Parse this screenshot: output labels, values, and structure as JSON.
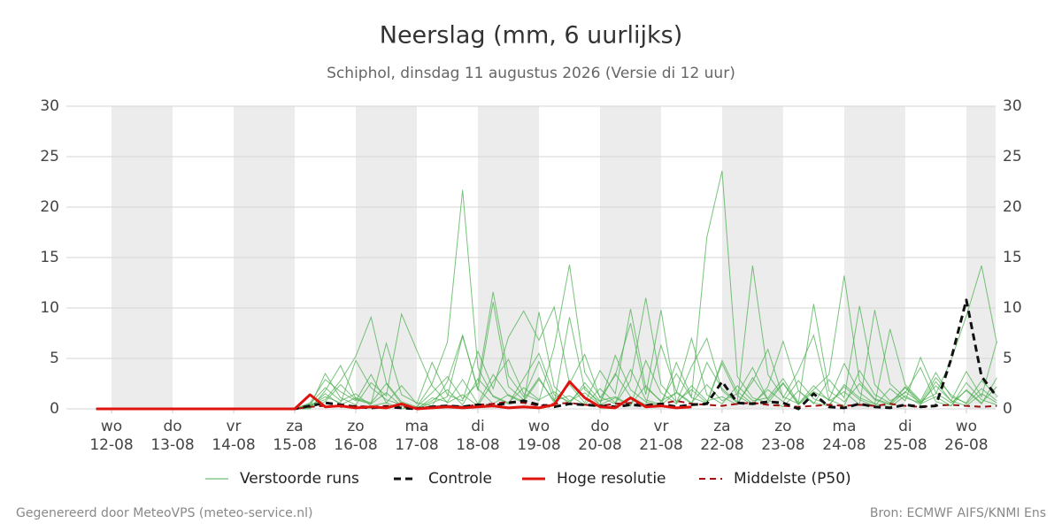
{
  "chart_data": {
    "type": "line",
    "title": "Neerslag (mm, 6 uurlijks)",
    "subtitle": "Schiphol, dinsdag 11 augustus 2026 (Versie di 12 uur)",
    "footer_left": "Gegenereerd door MeteoVPS (meteo-service.nl)",
    "footer_right": "Bron: ECMWF AIFS/KNMI Ens",
    "x": [
      0.75,
      1,
      1.25,
      1.5,
      1.75,
      2,
      2.25,
      2.5,
      2.75,
      3,
      3.25,
      3.5,
      3.75,
      4,
      4.25,
      4.5,
      4.75,
      5,
      5.25,
      5.5,
      5.75,
      6,
      6.25,
      6.5,
      6.75,
      7,
      7.25,
      7.5,
      7.75,
      8,
      8.25,
      8.5,
      8.75,
      9,
      9.25,
      9.5,
      9.75,
      10,
      10.25,
      10.5,
      10.75,
      11,
      11.25,
      11.5,
      11.75,
      12,
      12.25,
      12.5,
      12.75,
      13,
      13.25,
      13.5,
      13.75,
      14,
      14.25,
      14.5,
      14.75,
      15,
      15.25,
      15.5
    ],
    "xlim": [
      0.26,
      15.48
    ],
    "xticks": [
      {
        "value": 1,
        "label": "wo",
        "date": "12-08"
      },
      {
        "value": 2,
        "label": "do",
        "date": "13-08"
      },
      {
        "value": 3,
        "label": "vr",
        "date": "14-08"
      },
      {
        "value": 4,
        "label": "za",
        "date": "15-08"
      },
      {
        "value": 5,
        "label": "zo",
        "date": "16-08"
      },
      {
        "value": 6,
        "label": "ma",
        "date": "17-08"
      },
      {
        "value": 7,
        "label": "di",
        "date": "18-08"
      },
      {
        "value": 8,
        "label": "wo",
        "date": "19-08"
      },
      {
        "value": 9,
        "label": "do",
        "date": "20-08"
      },
      {
        "value": 10,
        "label": "vr",
        "date": "21-08"
      },
      {
        "value": 11,
        "label": "za",
        "date": "22-08"
      },
      {
        "value": 12,
        "label": "zo",
        "date": "23-08"
      },
      {
        "value": 13,
        "label": "ma",
        "date": "24-08"
      },
      {
        "value": 14,
        "label": "di",
        "date": "25-08"
      },
      {
        "value": 15,
        "label": "wo",
        "date": "26-08"
      }
    ],
    "ylim": [
      0,
      30
    ],
    "yticks": [
      0,
      5,
      10,
      15,
      20,
      25,
      30
    ],
    "grid": true,
    "shade_alternate_days": true,
    "ensemble": {
      "name": "Verstoorde runs",
      "color": "#4caf50",
      "members": [
        [
          0,
          0,
          0,
          0,
          0,
          0,
          0,
          0,
          0,
          0,
          0,
          0,
          0,
          0,
          0.5,
          2.1,
          0.8,
          1.5,
          0.3,
          0.6,
          0,
          0.2,
          2.5,
          6.6,
          21.7,
          4.1,
          1.2,
          0.5,
          3,
          5.5,
          1.4,
          0.7,
          2.2,
          0.4,
          1.1,
          0.3,
          4.8,
          1.6,
          0.5,
          2.3,
          0.8,
          1.2,
          0.4,
          3.1,
          0.9,
          0.2,
          1.8,
          0.6,
          0.3,
          2.4,
          1.1,
          0.5,
          0.2,
          1.3,
          0.4,
          2.7,
          0.8,
          0.3,
          1.5,
          0.6
        ],
        [
          0,
          0,
          0,
          0,
          0,
          0,
          0,
          0,
          0,
          0,
          0,
          0,
          0,
          0,
          0.3,
          1.2,
          0.6,
          4.8,
          2.1,
          0.9,
          0.4,
          0,
          1.1,
          0.7,
          2.9,
          0.5,
          3.4,
          1.3,
          0.6,
          9.6,
          2.2,
          0.8,
          1.6,
          0.4,
          5.3,
          1.9,
          0.7,
          0.3,
          4.6,
          1.2,
          17,
          23.6,
          3.2,
          1.1,
          0.6,
          2.5,
          0.4,
          1.7,
          0.9,
          0.3,
          3.8,
          1.4,
          0.6,
          2.1,
          0.5,
          1.2,
          0.3,
          2.6,
          0.9,
          0.4
        ],
        [
          0,
          0,
          0,
          0,
          0,
          0,
          0,
          0,
          0,
          0,
          0,
          0,
          0,
          0,
          0.2,
          3.5,
          1.1,
          0.4,
          2.6,
          1.3,
          9.4,
          5.8,
          2.3,
          0.6,
          1.4,
          0.3,
          2.7,
          4.9,
          1.5,
          0.8,
          6.1,
          14.3,
          3.6,
          1.2,
          0.5,
          2.8,
          11,
          2.4,
          0.7,
          1.9,
          0.6,
          4.5,
          1.3,
          0.4,
          2.2,
          6.7,
          1.8,
          0.5,
          2.9,
          1.1,
          10.2,
          2.4,
          0.8,
          1.6,
          4.1,
          0.7,
          0.3,
          1.9,
          0.6,
          2.2
        ],
        [
          0,
          0,
          0,
          0,
          0,
          0,
          0,
          0,
          0,
          0,
          0,
          0,
          0,
          0,
          0.4,
          0.9,
          2.8,
          5.2,
          9.1,
          2.6,
          0.7,
          0.2,
          1.6,
          3.2,
          1,
          2.5,
          11.6,
          3.3,
          1.2,
          4.7,
          0.9,
          2.4,
          0.6,
          3.8,
          1.5,
          9.9,
          2.1,
          0.8,
          1.6,
          0.5,
          4.6,
          2,
          0.7,
          14.2,
          3.4,
          1.2,
          0.5,
          2.3,
          0.8,
          1.7,
          0.4,
          9.8,
          2.5,
          1.1,
          0.6,
          3.1,
          1.4,
          0.5,
          2,
          0.8
        ],
        [
          0,
          0,
          0,
          0,
          0,
          0,
          0,
          0,
          0,
          0,
          0,
          0,
          0,
          0,
          0,
          1.8,
          4.3,
          1,
          0.5,
          6.5,
          1.4,
          0.6,
          0.3,
          2.7,
          7.3,
          1.8,
          10.6,
          2.2,
          0.9,
          3.1,
          0.6,
          9.1,
          1.9,
          0.7,
          3.5,
          1.2,
          0.4,
          6.3,
          1.7,
          0.6,
          2.4,
          0.8,
          1.5,
          4.1,
          0.9,
          2.6,
          0.5,
          1.9,
          3.4,
          13.2,
          2.8,
          1,
          0.5,
          2.2,
          0.7,
          1.5,
          4.8,
          9.2,
          14.2,
          6.5
        ],
        [
          0,
          0,
          0,
          0,
          0,
          0,
          0,
          0,
          0,
          0,
          0,
          0,
          0,
          0,
          0.6,
          2.9,
          1.7,
          0.8,
          3.4,
          0.6,
          2.3,
          0.5,
          4.6,
          1.4,
          0.8,
          5.7,
          2,
          7.1,
          9.7,
          6.8,
          10.1,
          2.5,
          5.4,
          1.1,
          3.3,
          8.5,
          1.4,
          9.8,
          0.6,
          4.2,
          7,
          1.8,
          0.6,
          2.7,
          5.9,
          1.1,
          3.8,
          7.3,
          0.9,
          4.5,
          1.6,
          0.5,
          7.9,
          2.4,
          0.8,
          3.6,
          1.2,
          0.6,
          2.8,
          1.3
        ],
        [
          0,
          0,
          0,
          0,
          0,
          0,
          0,
          0,
          0,
          0,
          0,
          0,
          0,
          0,
          0.2,
          1.5,
          0.4,
          1.1,
          0.6,
          2.5,
          0.5,
          0.1,
          0.8,
          1.9,
          0.4,
          3,
          1.3,
          0.6,
          2.1,
          0.9,
          1.7,
          0.5,
          2.6,
          0.8,
          1.2,
          0.4,
          2.3,
          0.7,
          3.5,
          1.1,
          0.6,
          4.8,
          1.7,
          0.5,
          1.9,
          0.7,
          2.8,
          1,
          0.4,
          2.2,
          0.9,
          0.3,
          2,
          0.8,
          5.1,
          1.6,
          0.6,
          1.8,
          0.5,
          3.1
        ],
        [
          0,
          0,
          0,
          0,
          0,
          0,
          0,
          0,
          0,
          0,
          0,
          0,
          0,
          0,
          0.1,
          0.7,
          2.4,
          0.9,
          0.5,
          1.6,
          0.3,
          0,
          0.6,
          1.2,
          7.2,
          2,
          0.5,
          1.4,
          0.7,
          2.9,
          0.8,
          1.3,
          0.4,
          2,
          0.6,
          3.9,
          0.9,
          0.4,
          1.6,
          7,
          1.4,
          0.5,
          2.3,
          0.8,
          1.1,
          3,
          0.6,
          10.4,
          1.8,
          0.7,
          2.5,
          0.9,
          0.4,
          1.7,
          0.6,
          2.3,
          0.8,
          3.7,
          1.2,
          6.7
        ]
      ]
    },
    "series": [
      {
        "name": "Controle",
        "color": "#111111",
        "dash": "8 5",
        "width": 3,
        "values": [
          0,
          0,
          0,
          0,
          0,
          0,
          0,
          0,
          0,
          0,
          0,
          0,
          0,
          0,
          0.3,
          0.6,
          0.4,
          0.2,
          0.1,
          0.2,
          0.1,
          0,
          0.2,
          0.3,
          0.2,
          0.4,
          0.3,
          0.6,
          0.8,
          0.4,
          0.2,
          0.5,
          0.4,
          0.3,
          0.2,
          0.4,
          0.3,
          0.5,
          0.2,
          0.4,
          0.5,
          2.7,
          0.6,
          0.5,
          0.7,
          0.6,
          0,
          1.5,
          0.2,
          0.1,
          0.5,
          0.2,
          0.1,
          0.4,
          0.2,
          0.3,
          4.9,
          10.8,
          3.2,
          1.2
        ]
      },
      {
        "name": "Hoge resolutie",
        "color": "#e0140f",
        "dash": "",
        "width": 3,
        "values": [
          0,
          0,
          0,
          0,
          0,
          0,
          0,
          0,
          0,
          0,
          0,
          0,
          0,
          0,
          1.4,
          0.2,
          0.3,
          0.1,
          0.2,
          0.1,
          0.5,
          0,
          0.1,
          0.2,
          0.1,
          0.2,
          0.3,
          0.1,
          0.2,
          0.1,
          0.4,
          2.7,
          1.1,
          0.2,
          0.1,
          1.1,
          0.2,
          0.3,
          0.1,
          0.2,
          null,
          null,
          null,
          null,
          null,
          null,
          null,
          null,
          null,
          null,
          null,
          null,
          null,
          null,
          null,
          null,
          null,
          null,
          null,
          null
        ]
      },
      {
        "name": "Middelste (P50)",
        "color": "#a01010",
        "dash": "7 5",
        "width": 2,
        "values": [
          0,
          0,
          0,
          0,
          0,
          0,
          0,
          0,
          0,
          0,
          0,
          0,
          0,
          0,
          0.2,
          0.3,
          0.2,
          0.3,
          0.2,
          0.3,
          0.2,
          0.1,
          0.2,
          0.3,
          0.2,
          0.4,
          0.5,
          0.7,
          0.6,
          0.3,
          0.5,
          0.6,
          0.4,
          0.3,
          0.5,
          0.6,
          0.4,
          0.5,
          0.8,
          0.5,
          0.4,
          0.3,
          0.5,
          0.6,
          0.4,
          0.3,
          0.2,
          0.3,
          0.4,
          0.3,
          0.4,
          0.3,
          0.5,
          0.3,
          0.2,
          0.3,
          0.4,
          0.3,
          0.2,
          0.3
        ]
      }
    ]
  }
}
